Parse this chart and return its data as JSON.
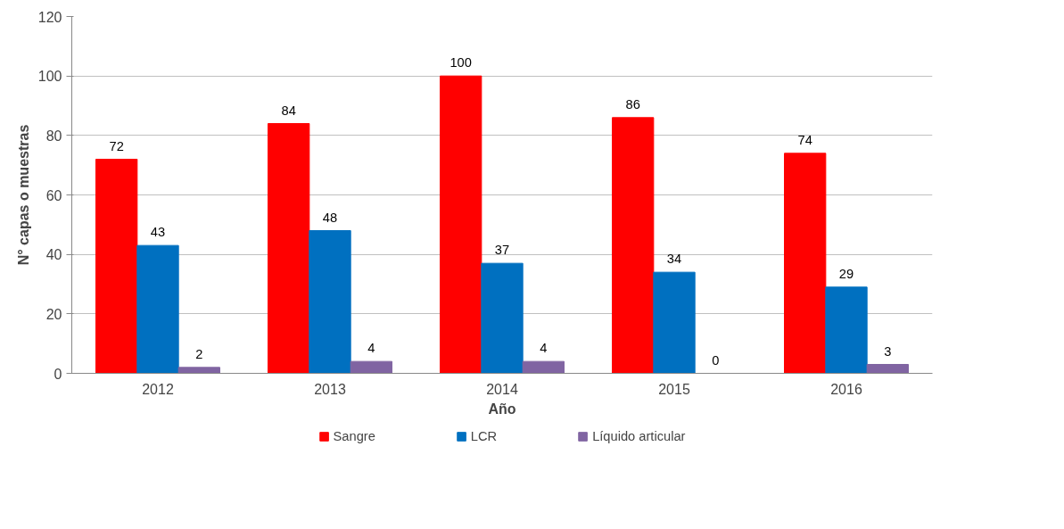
{
  "chart_data": {
    "type": "bar",
    "xlabel": "Año",
    "ylabel": "N° capas o muestras",
    "categories": [
      "2012",
      "2013",
      "2014",
      "2015",
      "2016"
    ],
    "series": [
      {
        "name": "Sangre",
        "color": "#ff0000",
        "values": [
          72,
          84,
          100,
          86,
          74
        ]
      },
      {
        "name": "LCR",
        "color": "#0070c0",
        "values": [
          43,
          48,
          37,
          34,
          29
        ]
      },
      {
        "name": "Líquido articular",
        "color": "#8064a2",
        "values": [
          2,
          4,
          4,
          0,
          3
        ]
      }
    ],
    "ylim": [
      0,
      120
    ],
    "yticks": [
      0,
      20,
      40,
      60,
      80,
      100,
      120
    ],
    "grid": "y",
    "legend": "bottom",
    "data_labels": true
  }
}
